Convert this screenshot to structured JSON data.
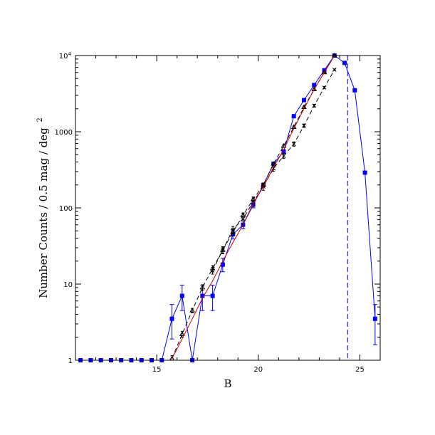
{
  "chart_data": {
    "type": "line",
    "title": "",
    "xlabel": "B",
    "ylabel": "Number Counts / 0.5 mag / deg",
    "ylabel_superscript": "2",
    "xlim": [
      11,
      26
    ],
    "ylim": [
      1,
      10000
    ],
    "yscale": "log",
    "grid": false,
    "x_ticks": [
      15,
      20,
      25
    ],
    "x_tick_labels": [
      "15",
      "20",
      "25"
    ],
    "y_ticks": [
      1,
      10,
      100,
      1000,
      10000
    ],
    "y_tick_labels": [
      "1",
      "10",
      "100",
      "1000"
    ],
    "y_top_label_base": "10",
    "y_top_label_exp": "4",
    "colors": {
      "blue": "#0000ff",
      "red": "#cc0000",
      "black": "#000000"
    },
    "series": [
      {
        "style": "blue-squares-solid-line",
        "x": [
          11.25,
          11.75,
          12.25,
          12.75,
          13.25,
          13.75,
          14.25,
          14.75,
          15.25,
          15.75,
          16.25,
          16.75,
          17.25,
          17.75,
          18.25,
          18.75,
          19.25,
          19.75,
          20.25,
          20.75,
          21.25,
          21.75,
          22.25,
          22.75,
          23.25,
          23.75,
          24.25,
          24.75,
          25.25,
          25.75
        ],
        "y": [
          1,
          1,
          1,
          1,
          1,
          1,
          1,
          1,
          1,
          3.5,
          7,
          1,
          7,
          7,
          18,
          45,
          60,
          110,
          200,
          380,
          550,
          1600,
          2600,
          4100,
          6400,
          10000,
          8000,
          3500,
          290,
          3.5
        ],
        "err_low": [
          0,
          0,
          0,
          0,
          0,
          0,
          0,
          0,
          0,
          1.6,
          2.5,
          0,
          2.5,
          2.5,
          3.5,
          6,
          7,
          10,
          0,
          0,
          0,
          0,
          0,
          0,
          0,
          0,
          0,
          0,
          0,
          1.9
        ],
        "err_high": [
          0,
          0,
          0,
          0,
          0,
          0,
          0,
          0,
          0,
          1.9,
          2.7,
          0,
          2.7,
          2.7,
          3.8,
          6.5,
          7.5,
          11,
          0,
          0,
          0,
          0,
          0,
          0,
          0,
          0,
          0,
          0,
          0,
          1.9
        ]
      },
      {
        "style": "black-triangles-dashed-line",
        "x": [
          15.75,
          16.25,
          16.75,
          17.25,
          17.75,
          18.25,
          18.75,
          19.25,
          19.75,
          20.25,
          20.75,
          21.25,
          21.75,
          22.25,
          22.75,
          23.25,
          23.75
        ],
        "y": [
          1.05,
          2.2,
          4.5,
          9,
          16,
          28,
          48,
          80,
          130,
          200,
          380,
          650,
          1150,
          2100,
          3600,
          6000,
          10000
        ],
        "err": [
          0.1,
          0.2,
          0.3,
          0.8,
          1.5,
          2.5,
          4,
          6,
          9,
          12,
          18,
          25,
          40,
          60,
          90,
          120,
          150
        ]
      },
      {
        "style": "black-crosses-dashed-line",
        "x": [
          17.75,
          18.25,
          18.75,
          19.25,
          19.75,
          20.25,
          20.75,
          21.25,
          21.75,
          22.25,
          22.75,
          23.25,
          23.75
        ],
        "y": [
          15,
          28,
          52,
          72,
          120,
          190,
          330,
          480,
          690,
          1200,
          2200,
          3800,
          6500
        ],
        "err": [
          1.5,
          3,
          5,
          12,
          15,
          20,
          28,
          35,
          45,
          60,
          90,
          120,
          160
        ]
      },
      {
        "style": "red-solid-line",
        "x": [
          15.75,
          16.25,
          16.75,
          17.25,
          17.75,
          18.25,
          18.75,
          19.25,
          19.75,
          20.25,
          20.75,
          21.25,
          21.75,
          22.25,
          22.75,
          23.25,
          23.75
        ],
        "y": [
          1.05,
          1.9,
          3.5,
          6.5,
          11,
          20,
          35,
          60,
          115,
          190,
          340,
          580,
          1100,
          2000,
          3600,
          6000,
          10000
        ]
      }
    ],
    "vline": {
      "x": 24.4,
      "color": "#0000ff",
      "style": "dashed"
    }
  }
}
